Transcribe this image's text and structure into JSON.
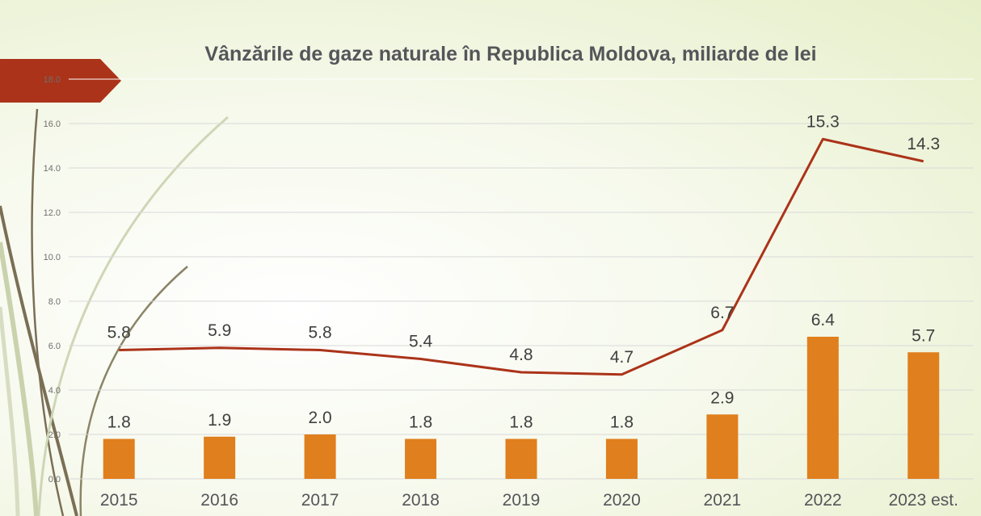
{
  "chart_data": {
    "type": "bar",
    "title": "Vânzările de gaze naturale în Republica Moldova, miliarde de lei",
    "xlabel": "",
    "ylabel": "",
    "ylim": [
      0,
      18
    ],
    "yticks": [
      "0.0",
      "2.0",
      "4.0",
      "6.0",
      "8.0",
      "10.0",
      "12.0",
      "14.0",
      "16.0",
      "18.0"
    ],
    "grid": true,
    "categories": [
      "2015",
      "2016",
      "2017",
      "2018",
      "2019",
      "2020",
      "2021",
      "2022",
      "2023 est."
    ],
    "series": [
      {
        "type": "bar",
        "values": [
          1.8,
          1.9,
          2.0,
          1.8,
          1.8,
          1.8,
          2.9,
          6.4,
          5.7
        ],
        "labels": [
          "1.8",
          "1.9",
          "2.0",
          "1.8",
          "1.8",
          "1.8",
          "2.9",
          "6.4",
          "5.7"
        ],
        "color": "#e07f1d"
      },
      {
        "type": "line",
        "values": [
          5.8,
          5.9,
          5.8,
          5.4,
          4.8,
          4.7,
          6.7,
          15.3,
          14.3
        ],
        "labels": [
          "5.8",
          "5.9",
          "5.8",
          "5.4",
          "4.8",
          "4.7",
          "6.7",
          "15.3",
          "14.3"
        ],
        "color": "#ab3319"
      }
    ]
  },
  "theme": {
    "ribbon_color": "#ab3319",
    "gridline_color": "#d9d9d9"
  }
}
